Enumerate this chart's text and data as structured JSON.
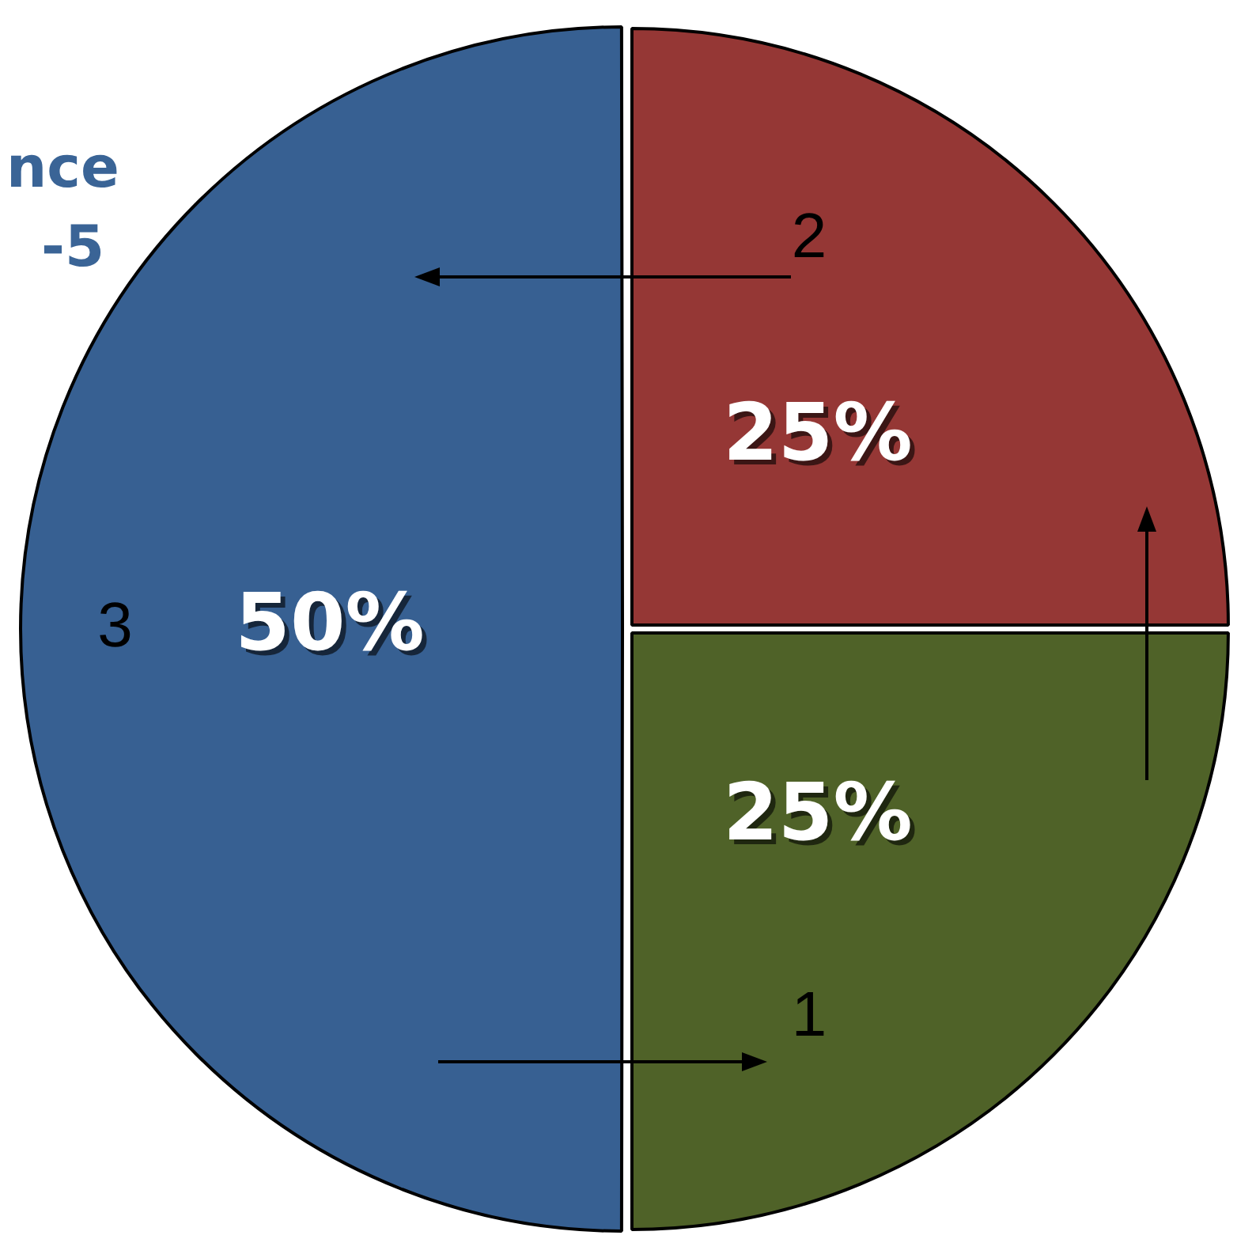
{
  "chart_data": {
    "type": "pie",
    "categories": [
      "2",
      "1",
      "3"
    ],
    "values": [
      25,
      25,
      50
    ],
    "colors": [
      "#953735",
      "#4f6228",
      "#376092"
    ],
    "value_labels": [
      "25%",
      "25%",
      "50%"
    ],
    "annotations": [
      "nce",
      "-5"
    ],
    "legend": false
  }
}
